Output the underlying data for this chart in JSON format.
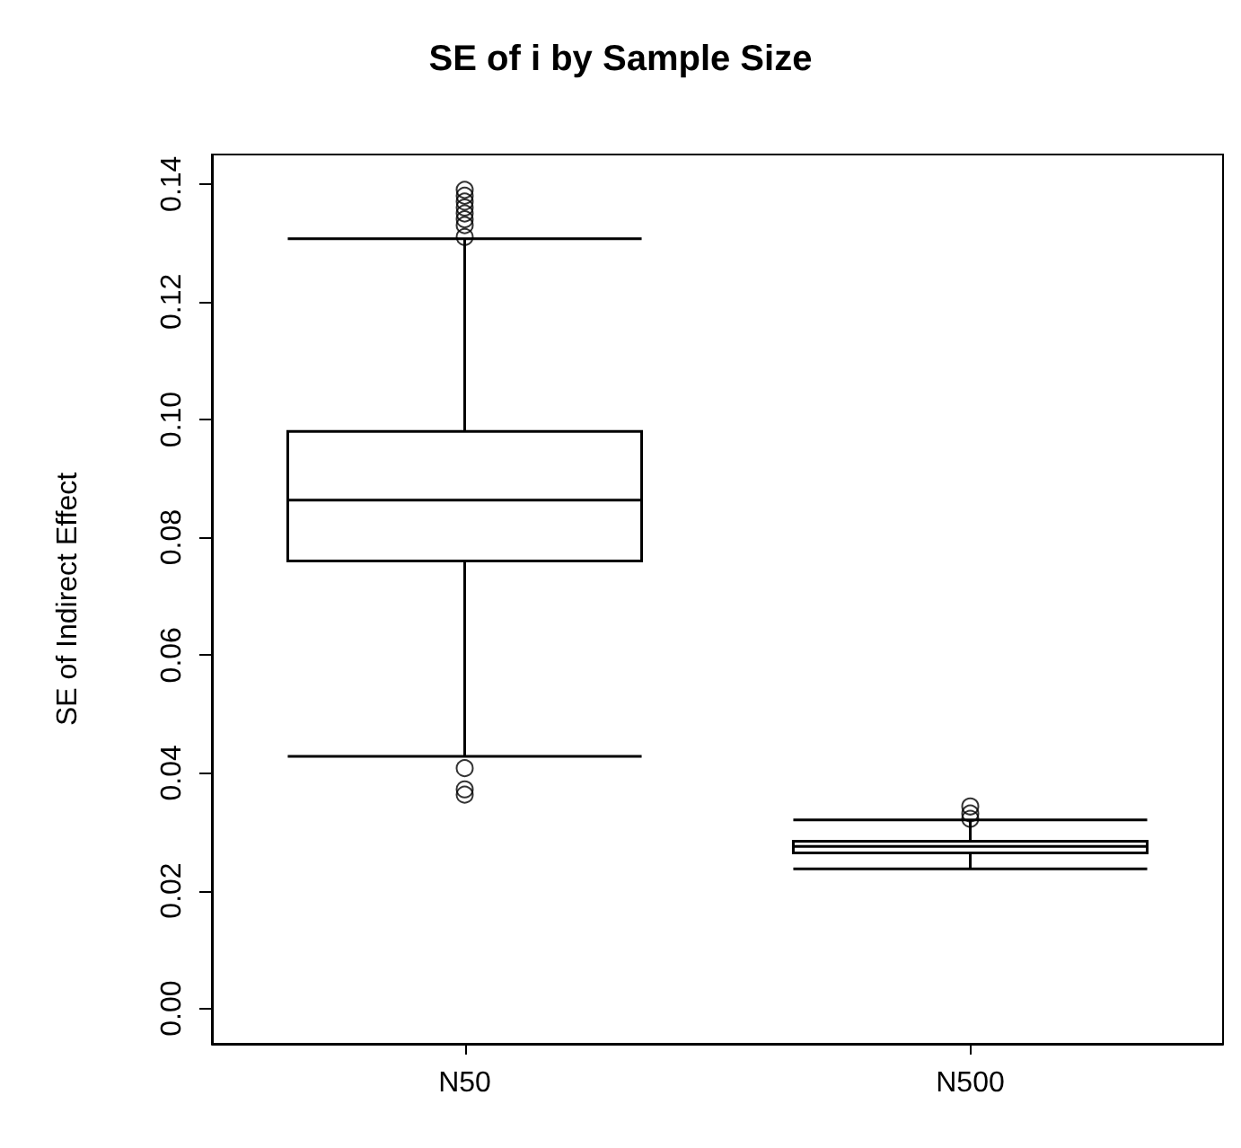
{
  "chart_data": {
    "type": "box",
    "title": "SE of i by Sample Size",
    "ylabel": "SE of Indirect Effect",
    "categories": [
      "N50",
      "N500"
    ],
    "boxes": [
      {
        "low": 0.0428,
        "q1": 0.076,
        "median": 0.0863,
        "q3": 0.098,
        "high": 0.1307,
        "outliers": [
          0.131,
          0.133,
          0.134,
          0.135,
          0.136,
          0.137,
          0.138,
          0.139,
          0.0408,
          0.0372,
          0.0363
        ]
      },
      {
        "low": 0.0237,
        "q1": 0.0264,
        "median": 0.0275,
        "q3": 0.0284,
        "high": 0.032,
        "outliers": [
          0.0322,
          0.0331,
          0.0343
        ]
      }
    ],
    "color": "#000000",
    "ylim": [
      -0.006,
      0.145
    ],
    "yticks": [
      {
        "value": 0,
        "label": "0.00"
      },
      {
        "value": 0.02,
        "label": "0.02"
      },
      {
        "value": 0.04,
        "label": "0.04"
      },
      {
        "value": 0.06,
        "label": "0.06"
      },
      {
        "value": 0.08,
        "label": "0.08"
      },
      {
        "value": 0.1,
        "label": "0.10"
      },
      {
        "value": 0.12,
        "label": "0.12"
      },
      {
        "value": 0.14,
        "label": "0.14"
      }
    ],
    "grid": false,
    "marker": "circle"
  }
}
